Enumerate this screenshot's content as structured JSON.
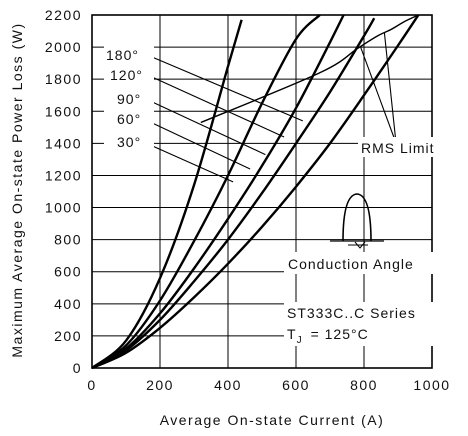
{
  "chart_data": {
    "type": "line",
    "xlabel": "Average On-state Current (A)",
    "ylabel": "Maximum Average On-state Power Loss (W)",
    "xlim": [
      0,
      1000
    ],
    "ylim": [
      0,
      2200
    ],
    "x_ticks": [
      "0",
      "200",
      "400",
      "600",
      "800",
      "1000"
    ],
    "y_ticks": [
      "0",
      "200",
      "400",
      "600",
      "800",
      "1000",
      "1200",
      "1400",
      "1600",
      "1800",
      "2000",
      "2200"
    ],
    "grid": true,
    "series": [
      {
        "name": "30°",
        "x": [
          0,
          100,
          200,
          300,
          400,
          440
        ],
        "y": [
          0,
          170,
          560,
          1140,
          1880,
          2170
        ]
      },
      {
        "name": "60°",
        "x": [
          0,
          100,
          200,
          300,
          400,
          500,
          600,
          670
        ],
        "y": [
          0,
          140,
          420,
          790,
          1200,
          1650,
          2050,
          2200
        ]
      },
      {
        "name": "90°",
        "x": [
          0,
          100,
          200,
          300,
          400,
          500,
          600,
          700,
          740
        ],
        "y": [
          0,
          120,
          340,
          620,
          930,
          1260,
          1620,
          2030,
          2200
        ]
      },
      {
        "name": "120°",
        "x": [
          0,
          100,
          200,
          300,
          400,
          500,
          600,
          700,
          800,
          830
        ],
        "y": [
          0,
          110,
          300,
          540,
          800,
          1090,
          1400,
          1720,
          2070,
          2180
        ]
      },
      {
        "name": "180°",
        "x": [
          0,
          100,
          200,
          300,
          400,
          500,
          600,
          700,
          800,
          900,
          960
        ],
        "y": [
          0,
          95,
          250,
          440,
          650,
          880,
          1130,
          1400,
          1700,
          2010,
          2200
        ]
      },
      {
        "name": "RMS Limit",
        "x": [
          320,
          670,
          780,
          840,
          880,
          920,
          960
        ],
        "y": [
          1530,
          1840,
          1990,
          2070,
          2110,
          2160,
          2200
        ]
      }
    ],
    "annotations": {
      "angle_labels": [
        "180°",
        "120°",
        "90°",
        "60°",
        "30°"
      ],
      "rms_label": "RMS Limit",
      "conduction_label": "Conduction Angle",
      "series_label": "ST333C..C Series",
      "tj_label": "T",
      "tj_sub": "J",
      "tj_value": "= 125°C"
    }
  }
}
